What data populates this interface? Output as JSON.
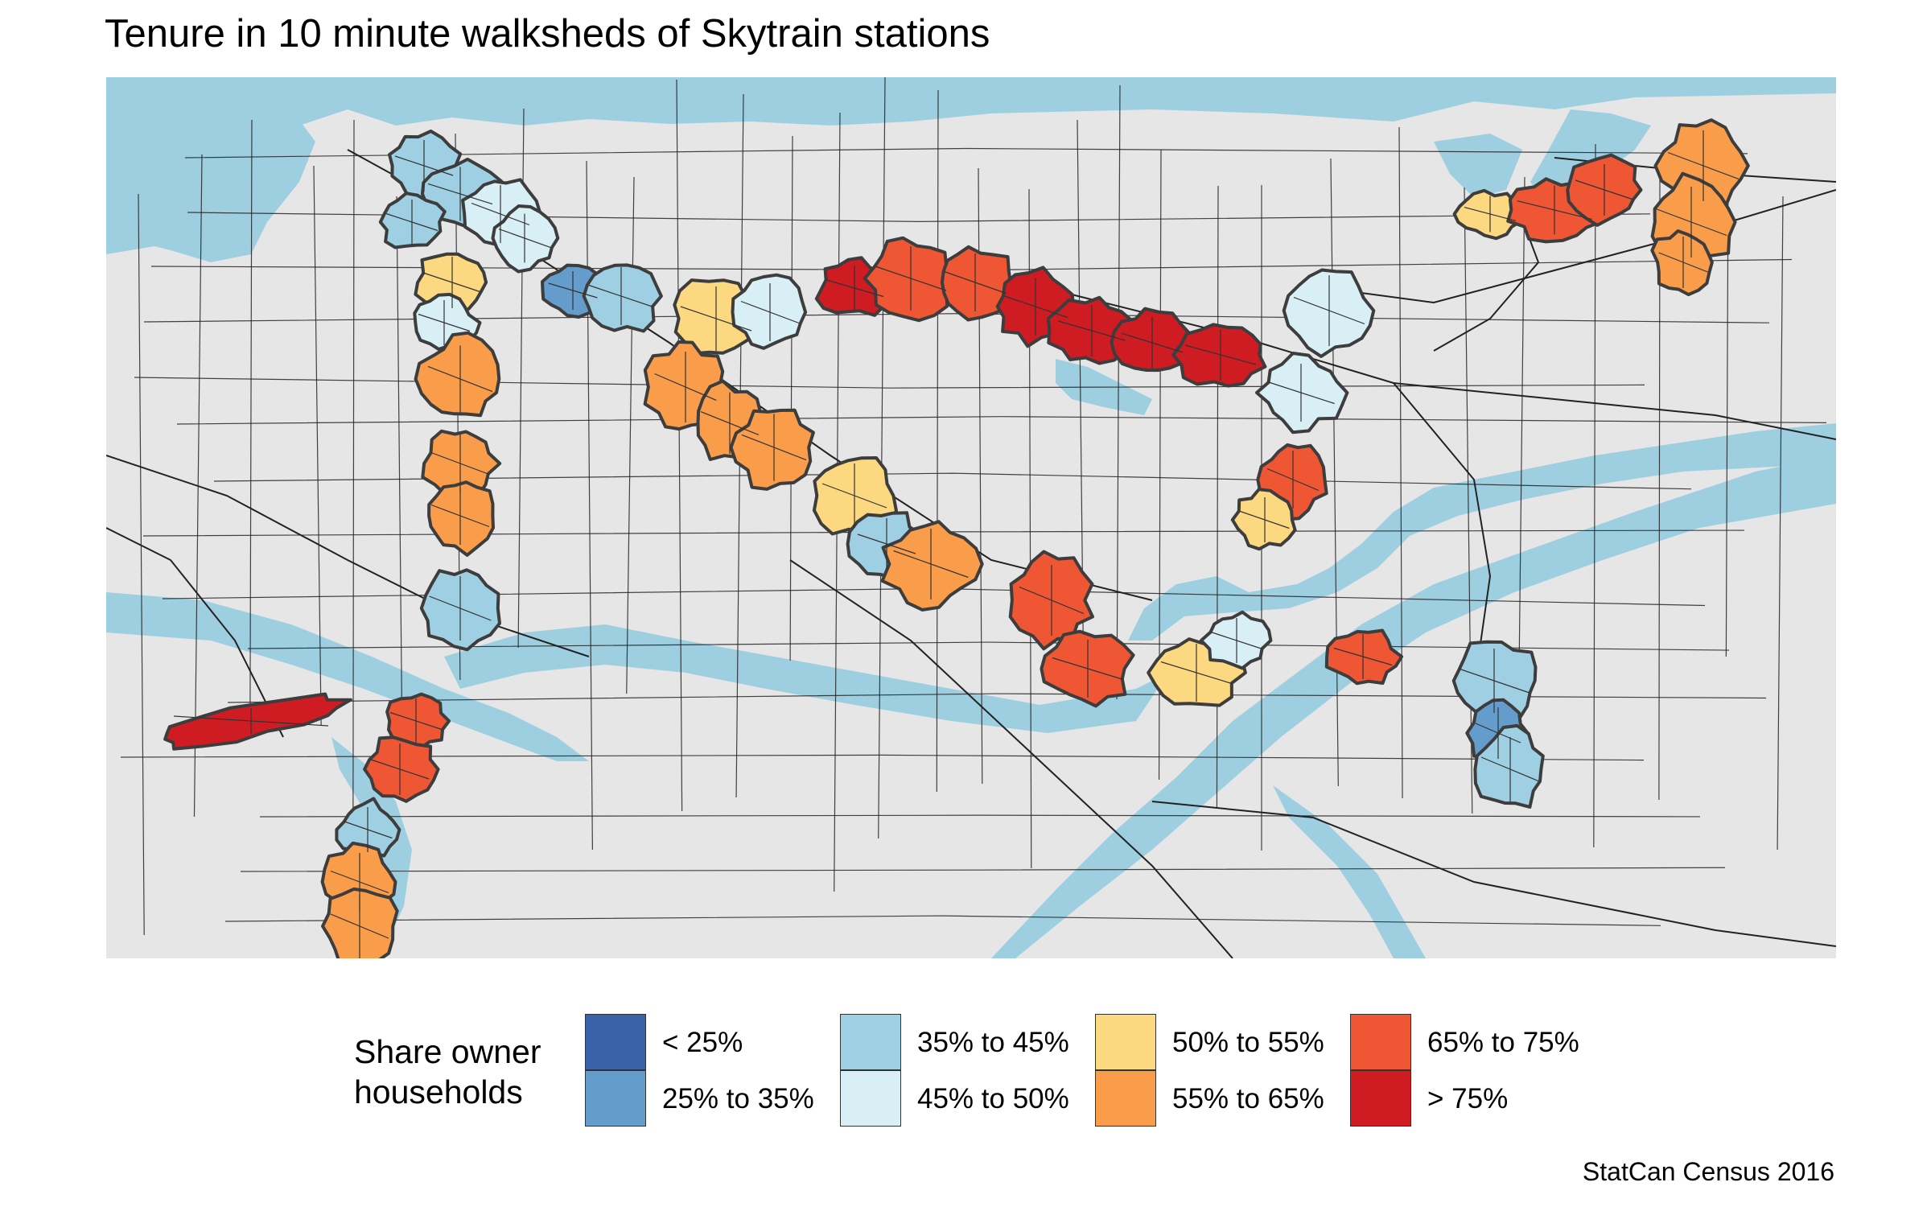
{
  "title": "Tenure in 10 minute walksheds of Skytrain stations",
  "caption": "StatCan Census 2016",
  "legend": {
    "title_lines": [
      "Share owner",
      "households"
    ],
    "items": [
      {
        "label": "< 25%",
        "color": "#3a62aa"
      },
      {
        "label": "25% to 35%",
        "color": "#649dcb"
      },
      {
        "label": "35% to 45%",
        "color": "#9fcfe3"
      },
      {
        "label": "45% to 50%",
        "color": "#d9eff6"
      },
      {
        "label": "50% to 55%",
        "color": "#fcd980"
      },
      {
        "label": "55% to 65%",
        "color": "#f99d4b"
      },
      {
        "label": "65% to 75%",
        "color": "#ee5634"
      },
      {
        "label": "> 75%",
        "color": "#cf1b22"
      }
    ]
  },
  "map_colors": {
    "land": "#e6e6e6",
    "water": "#9ecfe1",
    "roads": "#222222",
    "walkshed_outline": "#3d3d3d"
  }
}
